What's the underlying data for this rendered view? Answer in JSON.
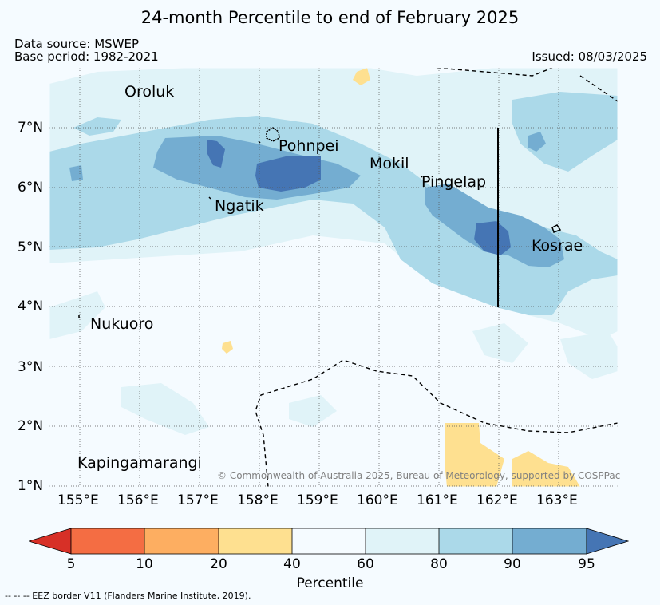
{
  "title": "24-month Percentile to end of February 2025",
  "data_source": "Data source: MSWEP",
  "base_period": "Base period: 1982-2021",
  "issued": "Issued: 08/03/2025",
  "lon_ticks": [
    "155°E",
    "156°E",
    "157°E",
    "158°E",
    "159°E",
    "160°E",
    "161°E",
    "162°E",
    "163°E"
  ],
  "lat_ticks": [
    "7°N",
    "6°N",
    "5°N",
    "4°N",
    "3°N",
    "2°N",
    "1°N"
  ],
  "places": {
    "oroluk": "Oroluk",
    "pohnpei": "Pohnpei",
    "mokil": "Mokil",
    "pingelap": "Pingelap",
    "ngatik": "Ngatik",
    "kosrae": "Kosrae",
    "nukuoro": "Nukuoro",
    "kapingamarangi": "Kapingamarangi"
  },
  "copyright": "© Commonwealth of Australia 2025, Bureau of Meteorology, supported by COSPPac",
  "colorbar": {
    "label": "Percentile",
    "ticks": [
      "5",
      "10",
      "20",
      "40",
      "60",
      "80",
      "90",
      "95"
    ],
    "colors": {
      "below_5": "#d73027",
      "p5_10": "#f46d43",
      "p10_20": "#fdae61",
      "p20_40": "#fee090",
      "p40_60": "#f5fbff",
      "p60_80": "#e0f3f8",
      "p80_90": "#abd9e9",
      "p90_95": "#74add1",
      "above_95": "#4575b4"
    }
  },
  "footnote": "-- -- -- EEZ border V11 (Flanders Marine Institute, 2019)."
}
